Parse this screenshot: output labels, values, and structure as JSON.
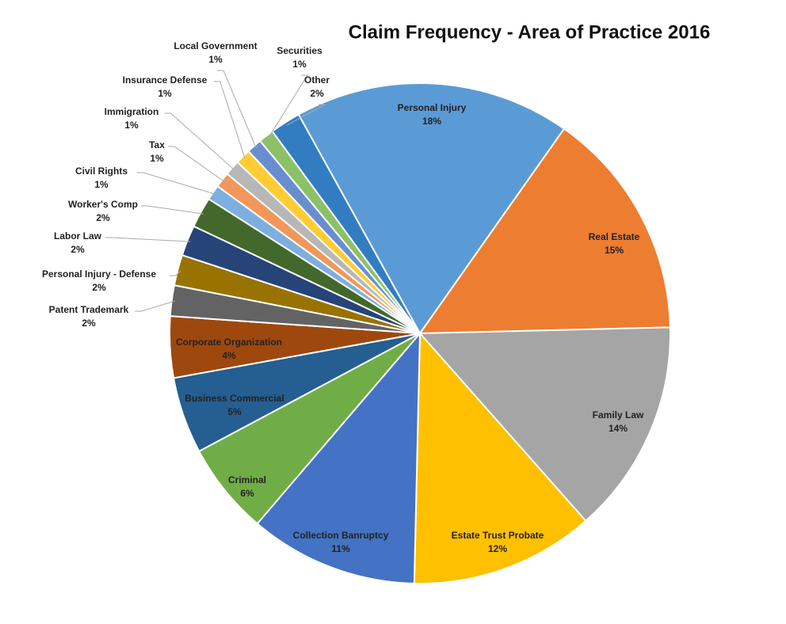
{
  "chart_data": {
    "type": "pie",
    "title": "Claim Frequency - Area of Practice 2016",
    "categories": [
      "Personal Injury",
      "Real Estate",
      "Family Law",
      "Estate Trust Probate",
      "Collection Banruptcy",
      "Criminal",
      "Business Commercial",
      "Corporate Organization",
      "Patent Trademark",
      "Personal Injury - Defense",
      "Labor Law",
      "Worker's Comp",
      "Civil Rights",
      "Tax",
      "Immigration",
      "Insurance Defense",
      "Local Government",
      "Securities",
      "Other"
    ],
    "values": [
      18,
      15,
      14,
      12,
      11,
      6,
      5,
      4,
      2,
      2,
      2,
      2,
      1,
      1,
      1,
      1,
      1,
      1,
      2
    ],
    "value_labels": [
      "18%",
      "15%",
      "14%",
      "12%",
      "11%",
      "6%",
      "5%",
      "4%",
      "2%",
      "2%",
      "2%",
      "2%",
      "1%",
      "1%",
      "1%",
      "1%",
      "1%",
      "1%",
      "2%"
    ],
    "colors": [
      "#5b9bd5",
      "#ed7d31",
      "#a5a5a5",
      "#ffc000",
      "#4472c4",
      "#70ad47",
      "#255e91",
      "#9e480e",
      "#636363",
      "#997300",
      "#264478",
      "#43682b",
      "#7cafdd",
      "#f1975a",
      "#b7b7b7",
      "#ffcd33",
      "#698ed0",
      "#8cc168",
      "#327dc2"
    ]
  }
}
